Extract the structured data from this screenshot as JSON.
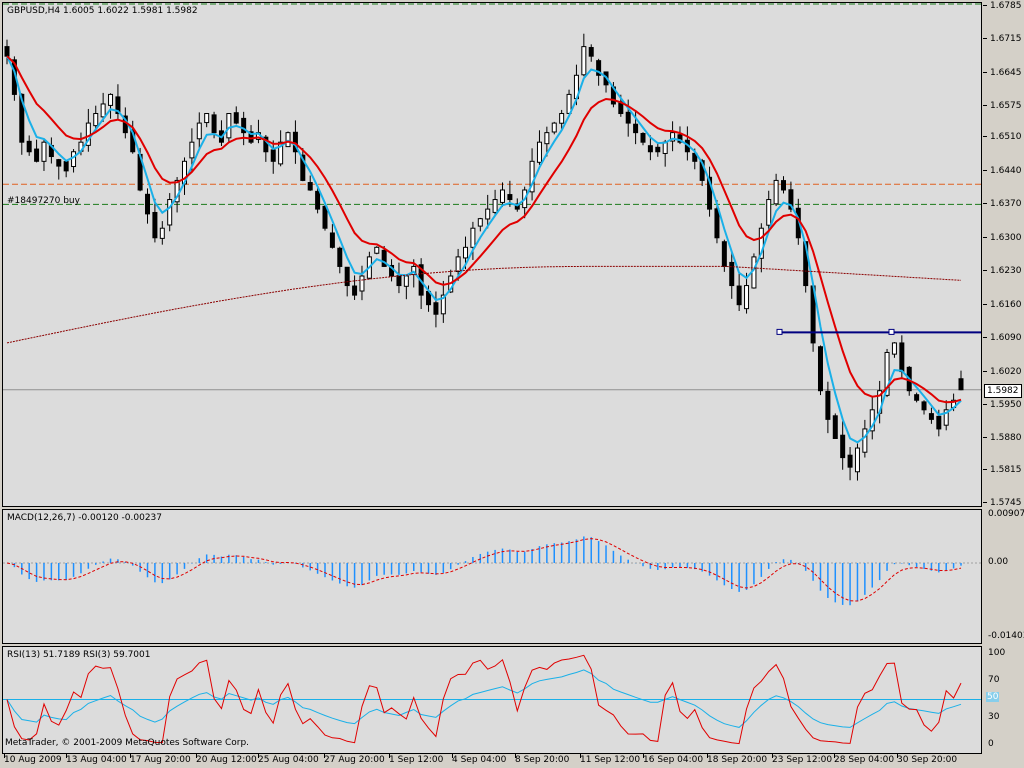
{
  "window": {
    "symbol_title": "GBPUSD,H4  1.6005 1.6022 1.5981 1.5982",
    "copyright": "MetaTrader, © 2001-2009 MetaQuotes Software Corp."
  },
  "colors": {
    "background": "#dcdcdc",
    "candle": "#000000",
    "ma_fast": "#1ab0e8",
    "ma_slow": "#e00000",
    "ma_long": "#8b0000",
    "order_line": "#e06020",
    "tp_line": "#1a7a1a",
    "trendline": "#000080",
    "macd_hist": "#1e90ff",
    "macd_signal": "#e00000",
    "rsi_13": "#1ab0e8",
    "rsi_3": "#e00000",
    "grid": "#a0a0a0"
  },
  "main": {
    "order_label": "#18497270 buy",
    "current_price": "1.5982",
    "price_axis": [
      "1.6785",
      "1.6715",
      "1.6645",
      "1.6575",
      "1.6510",
      "1.6440",
      "1.6370",
      "1.6300",
      "1.6230",
      "1.6160",
      "1.6090",
      "1.6020",
      "1.5950",
      "1.5880",
      "1.5815",
      "1.5745"
    ]
  },
  "macd": {
    "title": "MACD(12,26,7) -0.00120 -0.00237",
    "axis": [
      "0.00907",
      "0.00",
      "-0.01403"
    ]
  },
  "rsi": {
    "title": "RSI(13) 51.7189  RSI(3) 59.7001",
    "axis": [
      "100",
      "70",
      "50",
      "30",
      "0"
    ],
    "level_badge": "50"
  },
  "time_axis": [
    "10 Aug 2009",
    "13 Aug 04:00",
    "17 Aug 20:00",
    "20 Aug 12:00",
    "25 Aug 04:00",
    "27 Aug 20:00",
    "1 Sep 12:00",
    "4 Sep 04:00",
    "8 Sep 20:00",
    "11 Sep 12:00",
    "16 Sep 04:00",
    "18 Sep 20:00",
    "23 Sep 12:00",
    "28 Sep 04:00",
    "30 Sep 20:00"
  ],
  "chart_data": {
    "type": "candlestick",
    "symbol": "GBPUSD",
    "timeframe": "H4",
    "ylim": [
      1.5745,
      1.6785
    ],
    "last": {
      "open": 1.6005,
      "high": 1.6022,
      "low": 1.5981,
      "close": 1.5982
    },
    "order_price": 1.6412,
    "take_profit_price": 1.637,
    "trendline_price": 1.6102,
    "close_series": [
      1.668,
      1.66,
      1.65,
      1.648,
      1.646,
      1.65,
      1.647,
      1.645,
      1.644,
      1.648,
      1.65,
      1.654,
      1.656,
      1.658,
      1.66,
      1.656,
      1.652,
      1.648,
      1.64,
      1.635,
      1.63,
      1.632,
      1.638,
      1.642,
      1.646,
      1.65,
      1.654,
      1.656,
      1.652,
      1.65,
      1.656,
      1.654,
      1.652,
      1.65,
      1.652,
      1.648,
      1.646,
      1.65,
      1.652,
      1.648,
      1.642,
      1.64,
      1.636,
      1.632,
      1.628,
      1.624,
      1.62,
      1.618,
      1.622,
      1.626,
      1.628,
      1.624,
      1.622,
      1.62,
      1.622,
      1.624,
      1.618,
      1.616,
      1.614,
      1.618,
      1.622,
      1.626,
      1.628,
      1.632,
      1.634,
      1.636,
      1.638,
      1.64,
      1.638,
      1.636,
      1.64,
      1.646,
      1.65,
      1.652,
      1.654,
      1.656,
      1.66,
      1.664,
      1.67,
      1.668,
      1.664,
      1.662,
      1.658,
      1.656,
      1.654,
      1.652,
      1.65,
      1.648,
      1.648,
      1.65,
      1.652,
      1.65,
      1.648,
      1.646,
      1.642,
      1.636,
      1.63,
      1.624,
      1.62,
      1.616,
      1.62,
      1.626,
      1.632,
      1.638,
      1.642,
      1.64,
      1.636,
      1.63,
      1.62,
      1.608,
      1.598,
      1.592,
      1.588,
      1.584,
      1.582,
      1.586,
      1.59,
      1.594,
      1.598,
      1.606,
      1.608,
      1.602,
      1.598,
      1.596,
      1.594,
      1.592,
      1.59,
      1.594,
      1.596,
      1.5982
    ]
  }
}
